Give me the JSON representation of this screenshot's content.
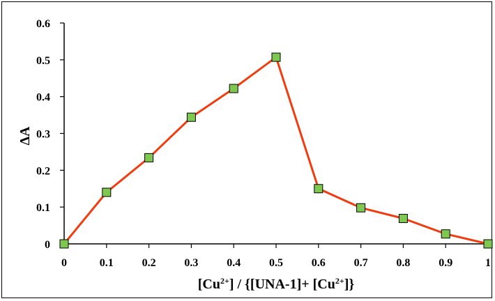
{
  "chart_data": {
    "type": "line",
    "title": "",
    "xlabel": {
      "open": "[Cu",
      "sup1": "2+",
      "mid": "] / {[UNA-1]+ [Cu",
      "sup2": "2+",
      "close": "]}"
    },
    "ylabel": "ΔA",
    "xlim": [
      0,
      1
    ],
    "ylim": [
      0,
      0.6
    ],
    "x_ticks": [
      "0",
      "0.1",
      "0.2",
      "0.3",
      "0.4",
      "0.5",
      "0.6",
      "0.7",
      "0.8",
      "0.9",
      "1"
    ],
    "y_ticks": [
      "0",
      "0.1",
      "0.2",
      "0.3",
      "0.4",
      "0.5",
      "0.6"
    ],
    "grid": false,
    "legend": "none",
    "series": [
      {
        "x": [
          0,
          0.1,
          0.2,
          0.3,
          0.4,
          0.5,
          0.6,
          0.7,
          0.8,
          0.9,
          1.0
        ],
        "values": [
          0.0,
          0.14,
          0.234,
          0.344,
          0.422,
          0.507,
          0.15,
          0.098,
          0.069,
          0.027,
          0.0
        ],
        "line_color": "#f03c0f",
        "marker": "square",
        "marker_color": "#7ec850"
      }
    ]
  }
}
